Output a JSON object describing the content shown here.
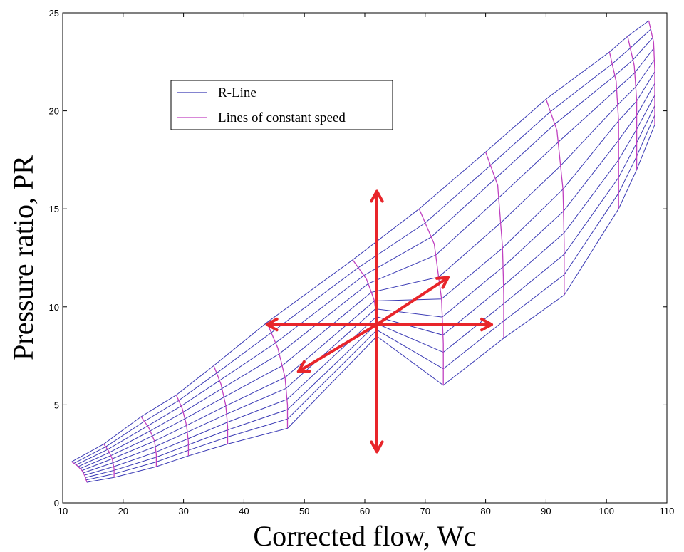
{
  "chart_data": {
    "type": "line",
    "xlabel": "Corrected flow, Wc",
    "ylabel": "Pressure ratio, PR",
    "xlim": [
      10,
      110
    ],
    "ylim": [
      0,
      25
    ],
    "xticks": [
      10,
      20,
      30,
      40,
      50,
      60,
      70,
      80,
      90,
      100,
      110
    ],
    "yticks": [
      0,
      5,
      10,
      15,
      20,
      25
    ],
    "grid": false,
    "legend_position": "top-left",
    "legend": [
      {
        "label": "R-Line",
        "color": "#3b3bb5"
      },
      {
        "label": "Lines of constant speed",
        "color": "#c040c0"
      }
    ],
    "series": [
      {
        "name": "Lines of constant speed",
        "color": "#c040c0",
        "lines": [
          {
            "x": [
              11.5,
              12.4,
              13.2,
              13.7,
              14.0
            ],
            "y": [
              2.1,
              1.9,
              1.65,
              1.35,
              1.05
            ]
          },
          {
            "x": [
              16.8,
              17.6,
              18.2,
              18.5,
              18.5
            ],
            "y": [
              3.0,
              2.65,
              2.25,
              1.75,
              1.3
            ]
          },
          {
            "x": [
              23.0,
              24.3,
              25.2,
              25.5,
              25.5
            ],
            "y": [
              4.4,
              3.8,
              3.15,
              2.45,
              1.85
            ]
          },
          {
            "x": [
              28.8,
              29.8,
              30.5,
              30.8,
              30.8
            ],
            "y": [
              5.5,
              4.8,
              3.95,
              3.1,
              2.4
            ]
          },
          {
            "x": [
              35.0,
              36.2,
              37.0,
              37.3,
              37.3
            ],
            "y": [
              7.0,
              6.05,
              4.95,
              3.9,
              3.0
            ]
          },
          {
            "x": [
              43.8,
              45.6,
              46.8,
              47.2,
              47.2
            ],
            "y": [
              9.2,
              7.9,
              6.4,
              5.0,
              3.8
            ]
          },
          {
            "x": [
              58.0,
              60.3,
              61.6,
              62.0,
              62.0
            ],
            "y": [
              12.4,
              11.4,
              10.3,
              9.3,
              8.5
            ]
          },
          {
            "x": [
              69.0,
              71.5,
              72.7,
              73.0,
              73.0
            ],
            "y": [
              15.0,
              13.2,
              10.4,
              8.1,
              6.0
            ]
          },
          {
            "x": [
              80.0,
              82.0,
              82.8,
              83.0,
              83.0
            ],
            "y": [
              17.9,
              16.2,
              13.0,
              10.6,
              8.4
            ]
          },
          {
            "x": [
              90.0,
              91.8,
              92.8,
              93.0,
              93.0
            ],
            "y": [
              20.6,
              19.0,
              16.0,
              13.2,
              10.6
            ]
          },
          {
            "x": [
              100.5,
              101.6,
              102.0,
              102.0,
              102.0
            ],
            "y": [
              23.0,
              21.5,
              19.5,
              17.0,
              15.0
            ]
          },
          {
            "x": [
              103.5,
              104.6,
              105.0,
              105.0,
              105.0
            ],
            "y": [
              23.8,
              22.3,
              20.5,
              18.7,
              17.0
            ]
          },
          {
            "x": [
              107.0,
              107.8,
              108.0,
              108.0,
              108.0
            ],
            "y": [
              24.6,
              23.5,
              22.0,
              20.5,
              19.3
            ]
          }
        ]
      },
      {
        "name": "R-Line",
        "color": "#3b3bb5",
        "note_rlines": 11
      }
    ],
    "arrows": [
      {
        "from": [
          62,
          9.1
        ],
        "to": [
          62,
          15.9
        ]
      },
      {
        "from": [
          62,
          9.1
        ],
        "to": [
          62,
          2.6
        ]
      },
      {
        "from": [
          62,
          9.1
        ],
        "to": [
          81,
          9.1
        ]
      },
      {
        "from": [
          62,
          9.1
        ],
        "to": [
          43.8,
          9.1
        ]
      },
      {
        "from": [
          62,
          9.1
        ],
        "to": [
          73.8,
          11.5
        ]
      },
      {
        "from": [
          62,
          9.1
        ],
        "to": [
          49,
          6.7
        ]
      }
    ],
    "arrow_color": "#e8252a"
  }
}
